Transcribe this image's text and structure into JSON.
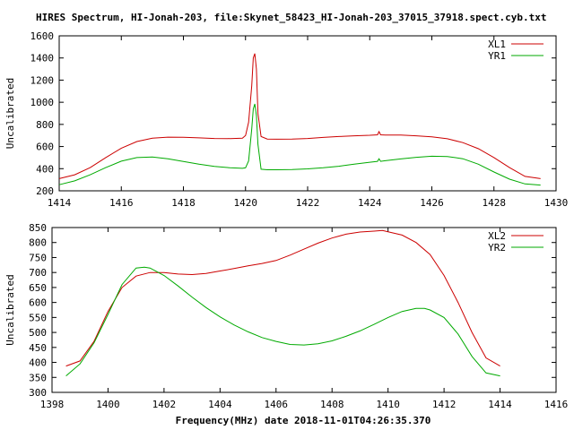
{
  "title": "HIRES Spectrum, HI-Jonah-203, file:Skynet_58423_HI-Jonah-203_37015_37918.spect.cyb.txt",
  "xlabel": "Frequency(MHz) date 2018-11-01T04:26:35.370",
  "chart_data": [
    {
      "type": "line",
      "ylabel": "Uncalibrated",
      "xlim": [
        1414,
        1430
      ],
      "ylim": [
        200,
        1600
      ],
      "xticks": [
        1414,
        1416,
        1418,
        1420,
        1422,
        1424,
        1426,
        1428,
        1430
      ],
      "yticks": [
        200,
        400,
        600,
        800,
        1000,
        1200,
        1400,
        1600
      ],
      "legend": "top-right",
      "grid": false,
      "series": [
        {
          "name": "XL1",
          "color": "#cc0000",
          "points": [
            [
              1414.0,
              310
            ],
            [
              1414.5,
              345
            ],
            [
              1415.0,
              410
            ],
            [
              1415.5,
              500
            ],
            [
              1416.0,
              585
            ],
            [
              1416.5,
              645
            ],
            [
              1417.0,
              675
            ],
            [
              1417.5,
              685
            ],
            [
              1418.0,
              683
            ],
            [
              1418.5,
              678
            ],
            [
              1419.0,
              673
            ],
            [
              1419.5,
              672
            ],
            [
              1419.9,
              676
            ],
            [
              1420.0,
              700
            ],
            [
              1420.1,
              820
            ],
            [
              1420.2,
              1150
            ],
            [
              1420.25,
              1400
            ],
            [
              1420.3,
              1440
            ],
            [
              1420.35,
              1300
            ],
            [
              1420.4,
              900
            ],
            [
              1420.5,
              690
            ],
            [
              1420.7,
              668
            ],
            [
              1421.0,
              666
            ],
            [
              1421.5,
              668
            ],
            [
              1422.0,
              673
            ],
            [
              1422.5,
              682
            ],
            [
              1423.0,
              690
            ],
            [
              1423.5,
              697
            ],
            [
              1424.0,
              702
            ],
            [
              1424.25,
              706
            ],
            [
              1424.3,
              735
            ],
            [
              1424.35,
              706
            ],
            [
              1424.5,
              704
            ],
            [
              1425.0,
              703
            ],
            [
              1425.5,
              697
            ],
            [
              1426.0,
              688
            ],
            [
              1426.5,
              670
            ],
            [
              1427.0,
              635
            ],
            [
              1427.5,
              580
            ],
            [
              1428.0,
              500
            ],
            [
              1428.5,
              410
            ],
            [
              1429.0,
              330
            ],
            [
              1429.5,
              310
            ]
          ]
        },
        {
          "name": "YR1",
          "color": "#00aa00",
          "points": [
            [
              1414.0,
              255
            ],
            [
              1414.5,
              290
            ],
            [
              1415.0,
              345
            ],
            [
              1415.5,
              410
            ],
            [
              1416.0,
              468
            ],
            [
              1416.5,
              500
            ],
            [
              1417.0,
              505
            ],
            [
              1417.5,
              490
            ],
            [
              1418.0,
              465
            ],
            [
              1418.5,
              440
            ],
            [
              1419.0,
              420
            ],
            [
              1419.5,
              408
            ],
            [
              1419.9,
              403
            ],
            [
              1420.0,
              408
            ],
            [
              1420.1,
              470
            ],
            [
              1420.2,
              760
            ],
            [
              1420.25,
              940
            ],
            [
              1420.3,
              985
            ],
            [
              1420.35,
              880
            ],
            [
              1420.4,
              620
            ],
            [
              1420.5,
              395
            ],
            [
              1420.7,
              390
            ],
            [
              1421.0,
              390
            ],
            [
              1421.5,
              392
            ],
            [
              1422.0,
              398
            ],
            [
              1422.5,
              408
            ],
            [
              1423.0,
              422
            ],
            [
              1423.5,
              440
            ],
            [
              1424.0,
              458
            ],
            [
              1424.25,
              466
            ],
            [
              1424.3,
              490
            ],
            [
              1424.35,
              466
            ],
            [
              1424.5,
              472
            ],
            [
              1425.0,
              488
            ],
            [
              1425.5,
              503
            ],
            [
              1426.0,
              512
            ],
            [
              1426.5,
              510
            ],
            [
              1427.0,
              490
            ],
            [
              1427.5,
              440
            ],
            [
              1428.0,
              370
            ],
            [
              1428.5,
              305
            ],
            [
              1429.0,
              262
            ],
            [
              1429.5,
              252
            ]
          ]
        }
      ]
    },
    {
      "type": "line",
      "ylabel": "Uncalibrated",
      "xlim": [
        1398,
        1416
      ],
      "ylim": [
        300,
        850
      ],
      "xticks": [
        1398,
        1400,
        1402,
        1404,
        1406,
        1408,
        1410,
        1412,
        1414,
        1416
      ],
      "yticks": [
        300,
        350,
        400,
        450,
        500,
        550,
        600,
        650,
        700,
        750,
        800,
        850
      ],
      "legend": "top-right",
      "grid": false,
      "series": [
        {
          "name": "XL2",
          "color": "#cc0000",
          "points": [
            [
              1398.5,
              388
            ],
            [
              1399.0,
              405
            ],
            [
              1399.5,
              470
            ],
            [
              1400.0,
              570
            ],
            [
              1400.5,
              650
            ],
            [
              1401.0,
              688
            ],
            [
              1401.5,
              700
            ],
            [
              1402.0,
              700
            ],
            [
              1402.5,
              695
            ],
            [
              1403.0,
              693
            ],
            [
              1403.5,
              697
            ],
            [
              1404.0,
              705
            ],
            [
              1404.5,
              713
            ],
            [
              1405.0,
              722
            ],
            [
              1405.5,
              730
            ],
            [
              1406.0,
              740
            ],
            [
              1406.5,
              758
            ],
            [
              1407.0,
              778
            ],
            [
              1407.5,
              798
            ],
            [
              1408.0,
              815
            ],
            [
              1408.5,
              828
            ],
            [
              1409.0,
              835
            ],
            [
              1409.5,
              838
            ],
            [
              1409.8,
              840
            ],
            [
              1410.0,
              836
            ],
            [
              1410.5,
              825
            ],
            [
              1411.0,
              800
            ],
            [
              1411.5,
              760
            ],
            [
              1412.0,
              690
            ],
            [
              1412.5,
              600
            ],
            [
              1413.0,
              500
            ],
            [
              1413.5,
              415
            ],
            [
              1414.0,
              388
            ]
          ]
        },
        {
          "name": "YR2",
          "color": "#00aa00",
          "points": [
            [
              1398.5,
              355
            ],
            [
              1399.0,
              395
            ],
            [
              1399.5,
              465
            ],
            [
              1400.0,
              560
            ],
            [
              1400.5,
              660
            ],
            [
              1401.0,
              715
            ],
            [
              1401.3,
              718
            ],
            [
              1401.5,
              715
            ],
            [
              1402.0,
              690
            ],
            [
              1402.5,
              655
            ],
            [
              1403.0,
              618
            ],
            [
              1403.5,
              583
            ],
            [
              1404.0,
              552
            ],
            [
              1404.5,
              525
            ],
            [
              1405.0,
              502
            ],
            [
              1405.5,
              483
            ],
            [
              1406.0,
              470
            ],
            [
              1406.5,
              460
            ],
            [
              1407.0,
              458
            ],
            [
              1407.5,
              462
            ],
            [
              1408.0,
              472
            ],
            [
              1408.5,
              487
            ],
            [
              1409.0,
              505
            ],
            [
              1409.5,
              527
            ],
            [
              1410.0,
              550
            ],
            [
              1410.5,
              570
            ],
            [
              1411.0,
              580
            ],
            [
              1411.3,
              580
            ],
            [
              1411.5,
              575
            ],
            [
              1412.0,
              550
            ],
            [
              1412.5,
              495
            ],
            [
              1413.0,
              420
            ],
            [
              1413.5,
              365
            ],
            [
              1414.0,
              355
            ]
          ]
        }
      ]
    }
  ],
  "layout_note": ""
}
